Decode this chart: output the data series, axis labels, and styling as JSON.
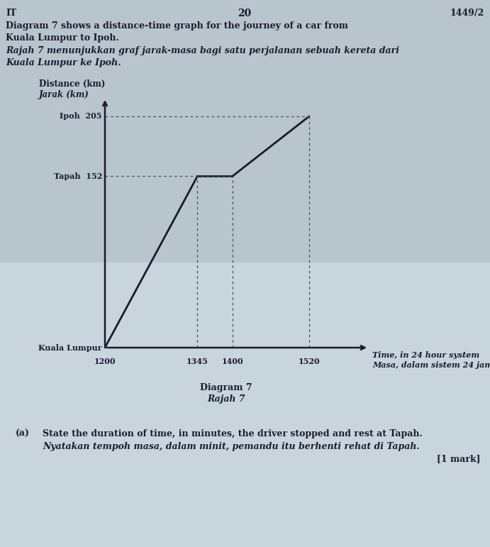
{
  "page_number": "1449/2",
  "page_label": "IT",
  "page_num_center": "20",
  "title_en": "Diagram 7 shows a distance-time graph for the journey of a car from\nKuala Lumpur to Ipoh.",
  "title_my": "Rajah 7 menunjukkan graf jarak-masa bagi satu perjalanan sebuah kereta dari\nKuala Lumpur ke Ipoh.",
  "ylabel_en": "Distance (km)",
  "ylabel_my": "Jarak (km)",
  "xlabel_en": "Time, in 24 hour system",
  "xlabel_my": "Masa, dalam sistem 24 jam",
  "diagram_label_en": "Diagram 7",
  "diagram_label_my": "Rajah 7",
  "x_ticks": [
    1200,
    1345,
    1400,
    1520
  ],
  "graph_data_x": [
    1200,
    1345,
    1400,
    1520
  ],
  "graph_data_y": [
    0,
    152,
    152,
    205
  ],
  "question_label": "(a)",
  "question_en": "State the duration of time, in minutes, the driver stopped and rest at Tapah.",
  "question_my": "Nyatakan tempoh masa, dalam minit, pemandu itu berhenti rehat di Tapah.",
  "question_marks": "[1 mark]",
  "bg_color_top": "#b8c4cc",
  "bg_color_bottom": "#d8e0e8",
  "graph_line_color": "#1a1a2e",
  "dotted_line_color": "#4a5060",
  "axis_color": "#1a1a2e",
  "text_color": "#1a1a2e"
}
